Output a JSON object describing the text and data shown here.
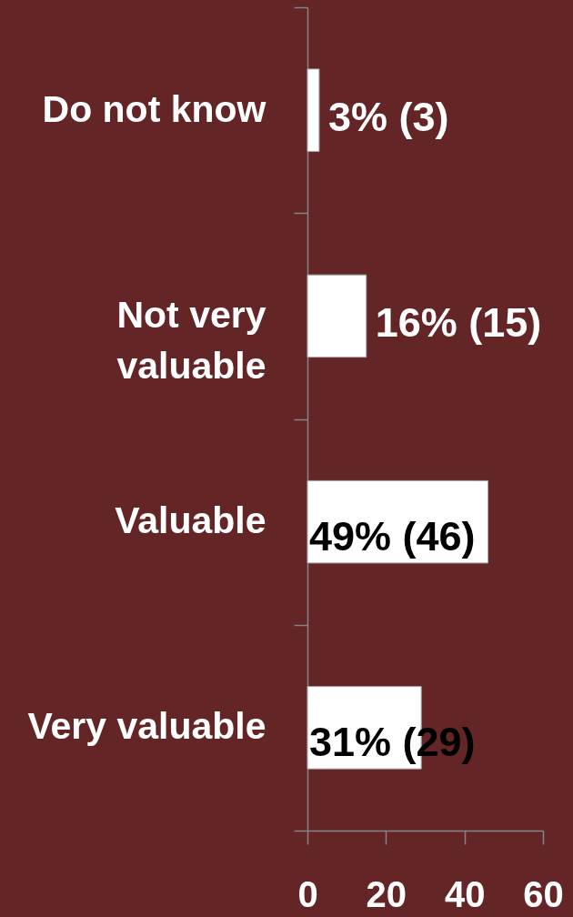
{
  "chart_data": {
    "type": "bar",
    "orientation": "horizontal",
    "categories": [
      "Do not know",
      "Not very valuable",
      "Valuable",
      "Very valuable"
    ],
    "values": [
      3,
      15,
      46,
      29
    ],
    "color": "#ffffff",
    "value_labels": [
      "3% (3)",
      "16% (15)",
      "49% (46)",
      "31% (29)"
    ],
    "xlim": [
      0,
      60
    ],
    "xticks": [
      0,
      20,
      40,
      60
    ]
  }
}
